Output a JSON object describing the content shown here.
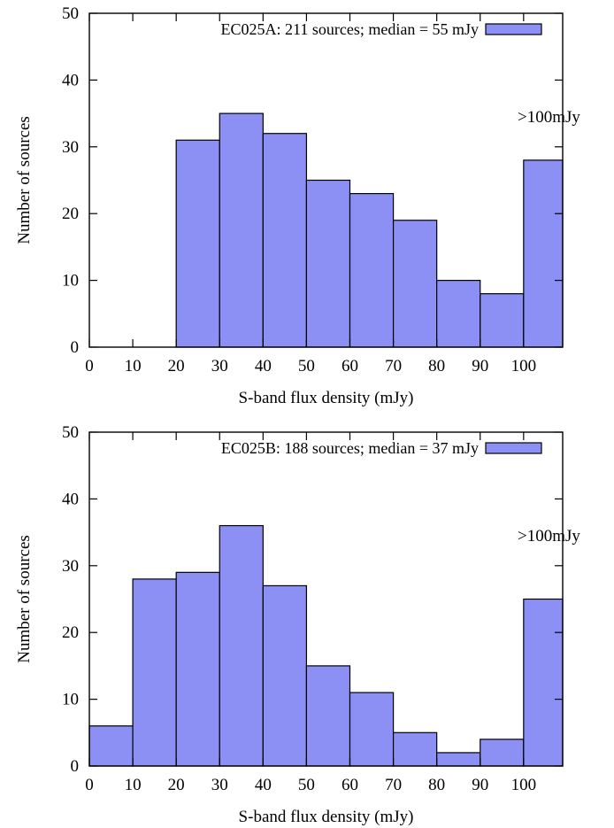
{
  "chart_data": [
    {
      "type": "bar",
      "legend": "EC025A: 211 sources; median = 55 mJy",
      "legend_position": "top-right",
      "annotation": ">100mJy",
      "xlabel": "S-band flux density (mJy)",
      "ylabel": "Number of sources",
      "xlim": [
        0,
        109
      ],
      "ylim": [
        0,
        50
      ],
      "xticks": [
        0,
        10,
        20,
        30,
        40,
        50,
        60,
        70,
        80,
        90,
        100
      ],
      "yticks": [
        0,
        10,
        20,
        30,
        40,
        50
      ],
      "bin_edges": [
        0,
        10,
        20,
        30,
        40,
        50,
        60,
        70,
        80,
        90,
        100,
        109
      ],
      "values": [
        0,
        0,
        31,
        35,
        32,
        25,
        23,
        19,
        10,
        8,
        28
      ],
      "bar_color": "#8c90f5",
      "grid": false
    },
    {
      "type": "bar",
      "legend": "EC025B: 188 sources; median = 37 mJy",
      "legend_position": "top-right",
      "annotation": ">100mJy",
      "xlabel": "S-band flux density (mJy)",
      "ylabel": "Number of sources",
      "xlim": [
        0,
        109
      ],
      "ylim": [
        0,
        50
      ],
      "xticks": [
        0,
        10,
        20,
        30,
        40,
        50,
        60,
        70,
        80,
        90,
        100
      ],
      "yticks": [
        0,
        10,
        20,
        30,
        40,
        50
      ],
      "bin_edges": [
        0,
        10,
        20,
        30,
        40,
        50,
        60,
        70,
        80,
        90,
        100,
        109
      ],
      "values": [
        6,
        28,
        29,
        36,
        27,
        15,
        11,
        5,
        2,
        4,
        25
      ],
      "bar_color": "#8c90f5",
      "grid": false
    }
  ]
}
